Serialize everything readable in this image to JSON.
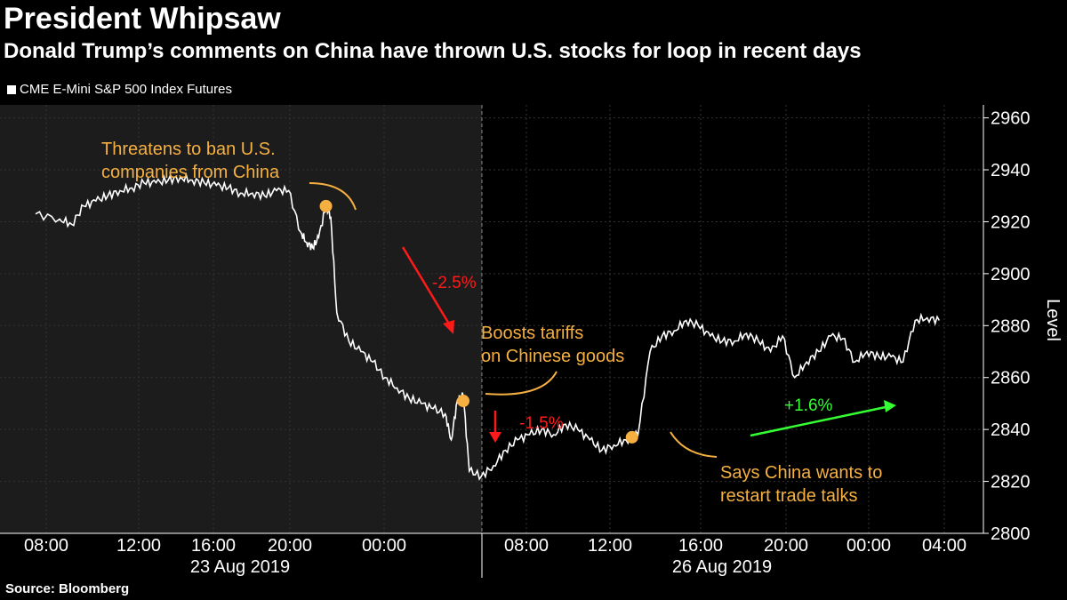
{
  "title": "President Whipsaw",
  "subtitle": "Donald Trump’s comments on China have thrown U.S. stocks for loop in recent days",
  "legend": "CME E-Mini S&P 500 Index Futures",
  "source": "Source: Bloomberg",
  "colors": {
    "line": "#ffffff",
    "annotation": "#f5b041",
    "down": "#ff1a1a",
    "up": "#33ff33",
    "shade": "#1c1c1c"
  },
  "chart_data": {
    "type": "line",
    "title": "President Whipsaw",
    "ylabel": "Level",
    "xlabel": "",
    "ylim": [
      2800,
      2965
    ],
    "yticks": [
      2800,
      2820,
      2840,
      2860,
      2880,
      2900,
      2920,
      2940,
      2960
    ],
    "xticks": [
      "08:00",
      "12:00",
      "16:00",
      "20:00",
      "00:00",
      "08:00",
      "12:00",
      "16:00",
      "20:00",
      "00:00",
      "04:00"
    ],
    "date_labels": [
      "23 Aug 2019",
      "26 Aug 2019"
    ],
    "series": [
      {
        "name": "CME E-Mini S&P 500 Index Futures",
        "x_hours": [
          0,
          2,
          3,
          4,
          5,
          6,
          7,
          8,
          9,
          10,
          11,
          12,
          13,
          14,
          15,
          16,
          17,
          18,
          19,
          20,
          21,
          22,
          22.5,
          23,
          23.5,
          24.1,
          24.5,
          25,
          26,
          27,
          28,
          29,
          30,
          31,
          32,
          33,
          34,
          34.5,
          35,
          35.5,
          36,
          37,
          38,
          39,
          40,
          41,
          42,
          43,
          44,
          45,
          46,
          47,
          48,
          49,
          50,
          51,
          52,
          53,
          54,
          55,
          56,
          57,
          58,
          59,
          60,
          61,
          62,
          63,
          64,
          65,
          66,
          67,
          68,
          69,
          70,
          71,
          72,
          73,
          74,
          75
        ],
        "values": [
          2923,
          2921,
          2919,
          2926,
          2928,
          2930,
          2932,
          2933,
          2935,
          2935,
          2936,
          2937,
          2936,
          2935,
          2934,
          2933,
          2931,
          2931,
          2930,
          2932,
          2932,
          2916,
          2912,
          2910,
          2914,
          2926,
          2922,
          2885,
          2874,
          2870,
          2866,
          2860,
          2856,
          2852,
          2850,
          2848,
          2846,
          2836,
          2851,
          2853,
          2824,
          2822,
          2826,
          2832,
          2836,
          2838,
          2840,
          2838,
          2842,
          2840,
          2836,
          2832,
          2834,
          2836,
          2838,
          2870,
          2876,
          2878,
          2882,
          2880,
          2876,
          2874,
          2874,
          2877,
          2874,
          2870,
          2876,
          2860,
          2866,
          2870,
          2876,
          2875,
          2866,
          2870,
          2868,
          2868,
          2866,
          2882,
          2883,
          2882
        ]
      }
    ],
    "annotations": [
      {
        "text": [
          "Threatens to ban U.S.",
          "companies from China"
        ],
        "x_hour": 24.1,
        "value": 2926
      },
      {
        "text": [
          "Boosts tariffs",
          "on Chinese goods"
        ],
        "x_hour": 35.5,
        "value": 2851
      },
      {
        "text": [
          "Says China wants to",
          "restart trade talks"
        ],
        "x_hour": 49.5,
        "value": 2837
      }
    ],
    "changes": [
      {
        "label": "-2.5%",
        "direction": "down"
      },
      {
        "label": "-1.5%",
        "direction": "down"
      },
      {
        "label": "+1.6%",
        "direction": "up"
      }
    ]
  }
}
